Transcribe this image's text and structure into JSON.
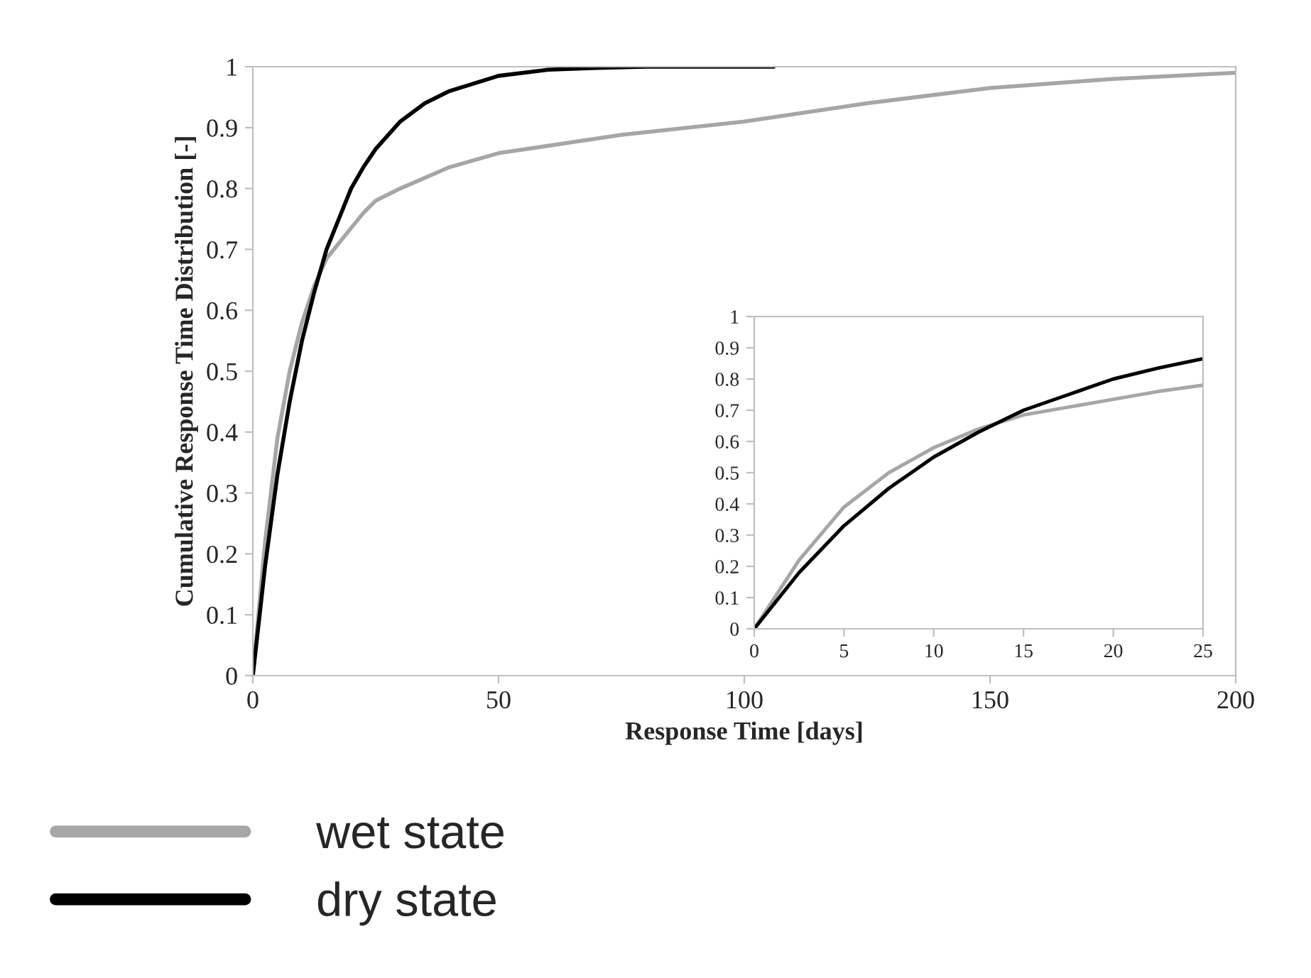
{
  "chart_data": [
    {
      "type": "line",
      "xlabel": "Response Time [days]",
      "ylabel": "Cumulative Response Time Distribution [-]",
      "xlim": [
        0,
        200
      ],
      "ylim": [
        0,
        1
      ],
      "xticks": [
        0,
        50,
        100,
        150,
        200
      ],
      "yticks": [
        0,
        0.1,
        0.2,
        0.3,
        0.4,
        0.5,
        0.6,
        0.7,
        0.8,
        0.9,
        1
      ],
      "grid": false,
      "legend": "bottom left",
      "marker": "none",
      "line_style": "solid",
      "series": [
        {
          "name": "wet state",
          "color": "#a6a6a6",
          "x": [
            0,
            2.5,
            5,
            7.5,
            10,
            12.5,
            15,
            17.5,
            20,
            22.5,
            25,
            30,
            40,
            50,
            75,
            100,
            125,
            150,
            175,
            200
          ],
          "values": [
            0,
            0.22,
            0.39,
            0.5,
            0.58,
            0.64,
            0.685,
            0.71,
            0.735,
            0.76,
            0.78,
            0.8,
            0.835,
            0.858,
            0.888,
            0.91,
            0.94,
            0.965,
            0.98,
            0.99
          ]
        },
        {
          "name": "dry state",
          "color": "#000000",
          "x": [
            0,
            2.5,
            5,
            7.5,
            10,
            12.5,
            15,
            17.5,
            20,
            22.5,
            25,
            30,
            35,
            40,
            50,
            60,
            70,
            80,
            106
          ],
          "values": [
            0,
            0.18,
            0.33,
            0.45,
            0.55,
            0.63,
            0.7,
            0.75,
            0.8,
            0.835,
            0.865,
            0.91,
            0.94,
            0.96,
            0.985,
            0.995,
            0.998,
            1,
            1
          ]
        }
      ]
    },
    {
      "type": "line",
      "xlim": [
        0,
        25
      ],
      "ylim": [
        0,
        1
      ],
      "xticks": [
        0,
        5,
        10,
        15,
        20,
        25
      ],
      "yticks": [
        0,
        0.1,
        0.2,
        0.3,
        0.4,
        0.5,
        0.6,
        0.7,
        0.8,
        0.9,
        1
      ],
      "grid": false,
      "marker": "none",
      "line_style": "solid",
      "series": [
        {
          "color": "#a6a6a6",
          "x": [
            0,
            2.5,
            5,
            7.5,
            10,
            12.5,
            15,
            17.5,
            20,
            22.5,
            25
          ],
          "values": [
            0,
            0.22,
            0.39,
            0.5,
            0.58,
            0.64,
            0.685,
            0.71,
            0.735,
            0.76,
            0.78
          ]
        },
        {
          "color": "#000000",
          "x": [
            0,
            2.5,
            5,
            7.5,
            10,
            12.5,
            15,
            17.5,
            20,
            22.5,
            25
          ],
          "values": [
            0,
            0.18,
            0.33,
            0.45,
            0.55,
            0.63,
            0.7,
            0.75,
            0.8,
            0.835,
            0.865
          ]
        }
      ]
    }
  ]
}
